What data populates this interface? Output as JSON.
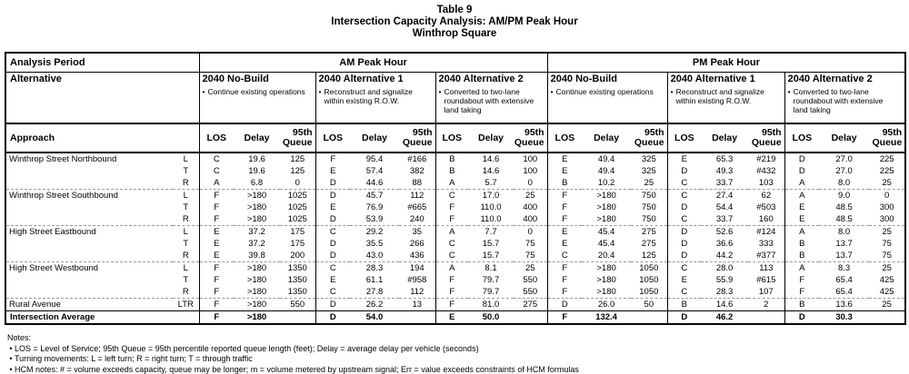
{
  "bullet": "•",
  "title": {
    "line1": "Table 9",
    "line2": "Intersection Capacity Analysis: AM/PM Peak Hour",
    "line3": "Winthrop Square"
  },
  "table": {
    "analysis_period_label": "Analysis Period",
    "alternative_label": "Alternative",
    "approach_label": "Approach",
    "metric_headers": [
      "LOS",
      "Delay",
      "95th Queue"
    ],
    "periods": [
      {
        "name": "AM Peak Hour",
        "alternatives": [
          {
            "name": "2040 No-Build",
            "description": "Continue existing operations"
          },
          {
            "name": "2040 Alternative 1",
            "description": "Reconstruct and signalize within existing R.O.W."
          },
          {
            "name": "2040 Alternative 2",
            "description": "Converted to two-lane roundabout with extensive land taking"
          }
        ]
      },
      {
        "name": "PM Peak Hour",
        "alternatives": [
          {
            "name": "2040 No-Build",
            "description": "Continue existing operations"
          },
          {
            "name": "2040 Alternative 1",
            "description": "Reconstruct and signalize within existing R.O.W."
          },
          {
            "name": "2040 Alternative 2",
            "description": "Converted to two-lane roundabout with extensive land taking"
          }
        ]
      }
    ],
    "rows": [
      {
        "approach": "Winthrop Street Northbound",
        "movement": "L",
        "group_start": false,
        "cells": [
          [
            "C",
            "19.6",
            "125"
          ],
          [
            "F",
            "95.4",
            "#166"
          ],
          [
            "B",
            "14.6",
            "100"
          ],
          [
            "E",
            "49.4",
            "325"
          ],
          [
            "E",
            "65.3",
            "#219"
          ],
          [
            "D",
            "27.0",
            "225"
          ]
        ]
      },
      {
        "approach": "",
        "movement": "T",
        "group_start": false,
        "cells": [
          [
            "C",
            "19.6",
            "125"
          ],
          [
            "E",
            "57.4",
            "382"
          ],
          [
            "B",
            "14.6",
            "100"
          ],
          [
            "E",
            "49.4",
            "325"
          ],
          [
            "D",
            "49.3",
            "#432"
          ],
          [
            "D",
            "27.0",
            "225"
          ]
        ]
      },
      {
        "approach": "",
        "movement": "R",
        "group_start": false,
        "cells": [
          [
            "A",
            "6.8",
            "0"
          ],
          [
            "D",
            "44.6",
            "88"
          ],
          [
            "A",
            "5.7",
            "0"
          ],
          [
            "B",
            "10.2",
            "25"
          ],
          [
            "C",
            "33.7",
            "103"
          ],
          [
            "A",
            "8.0",
            "25"
          ]
        ]
      },
      {
        "approach": "Winthrop Street Southbound",
        "movement": "L",
        "group_start": true,
        "cells": [
          [
            "F",
            ">180",
            "1025"
          ],
          [
            "D",
            "45.7",
            "112"
          ],
          [
            "C",
            "17.0",
            "25"
          ],
          [
            "F",
            ">180",
            "750"
          ],
          [
            "C",
            "27.4",
            "62"
          ],
          [
            "A",
            "9.0",
            "0"
          ]
        ]
      },
      {
        "approach": "",
        "movement": "T",
        "group_start": false,
        "cells": [
          [
            "F",
            ">180",
            "1025"
          ],
          [
            "E",
            "76.9",
            "#665"
          ],
          [
            "F",
            "110.0",
            "400"
          ],
          [
            "F",
            ">180",
            "750"
          ],
          [
            "D",
            "54.4",
            "#503"
          ],
          [
            "E",
            "48.5",
            "300"
          ]
        ]
      },
      {
        "approach": "",
        "movement": "R",
        "group_start": false,
        "cells": [
          [
            "F",
            ">180",
            "1025"
          ],
          [
            "D",
            "53.9",
            "240"
          ],
          [
            "F",
            "110.0",
            "400"
          ],
          [
            "F",
            ">180",
            "750"
          ],
          [
            "C",
            "33.7",
            "160"
          ],
          [
            "E",
            "48.5",
            "300"
          ]
        ]
      },
      {
        "approach": "High Street Eastbound",
        "movement": "L",
        "group_start": true,
        "cells": [
          [
            "E",
            "37.2",
            "175"
          ],
          [
            "C",
            "29.2",
            "35"
          ],
          [
            "A",
            "7.7",
            "0"
          ],
          [
            "E",
            "45.4",
            "275"
          ],
          [
            "D",
            "52.6",
            "#124"
          ],
          [
            "A",
            "8.0",
            "25"
          ]
        ]
      },
      {
        "approach": "",
        "movement": "T",
        "group_start": false,
        "cells": [
          [
            "E",
            "37.2",
            "175"
          ],
          [
            "D",
            "35.5",
            "266"
          ],
          [
            "C",
            "15.7",
            "75"
          ],
          [
            "E",
            "45.4",
            "275"
          ],
          [
            "D",
            "36.6",
            "333"
          ],
          [
            "B",
            "13.7",
            "75"
          ]
        ]
      },
      {
        "approach": "",
        "movement": "R",
        "group_start": false,
        "cells": [
          [
            "E",
            "39.8",
            "200"
          ],
          [
            "D",
            "43.0",
            "436"
          ],
          [
            "C",
            "15.7",
            "75"
          ],
          [
            "C",
            "20.4",
            "125"
          ],
          [
            "D",
            "44.2",
            "#377"
          ],
          [
            "B",
            "13.7",
            "75"
          ]
        ]
      },
      {
        "approach": "High Street Westbound",
        "movement": "L",
        "group_start": true,
        "cells": [
          [
            "F",
            ">180",
            "1350"
          ],
          [
            "C",
            "28.3",
            "194"
          ],
          [
            "A",
            "8.1",
            "25"
          ],
          [
            "F",
            ">180",
            "1050"
          ],
          [
            "C",
            "28.0",
            "113"
          ],
          [
            "A",
            "8.3",
            "25"
          ]
        ]
      },
      {
        "approach": "",
        "movement": "T",
        "group_start": false,
        "cells": [
          [
            "F",
            ">180",
            "1350"
          ],
          [
            "E",
            "61.1",
            "#958"
          ],
          [
            "F",
            "79.7",
            "550"
          ],
          [
            "F",
            ">180",
            "1050"
          ],
          [
            "E",
            "55.9",
            "#615"
          ],
          [
            "F",
            "65.4",
            "425"
          ]
        ]
      },
      {
        "approach": "",
        "movement": "R",
        "group_start": false,
        "cells": [
          [
            "F",
            ">180",
            "1350"
          ],
          [
            "C",
            "27.8",
            "112"
          ],
          [
            "F",
            "79.7",
            "550"
          ],
          [
            "F",
            ">180",
            "1050"
          ],
          [
            "C",
            "28.3",
            "107"
          ],
          [
            "F",
            "65.4",
            "425"
          ]
        ]
      },
      {
        "approach": "Rural Avenue",
        "movement": "LTR",
        "group_start": true,
        "cells": [
          [
            "F",
            ">180",
            "550"
          ],
          [
            "D",
            "26.2",
            "13"
          ],
          [
            "F",
            "81.0",
            "275"
          ],
          [
            "D",
            "26.0",
            "50"
          ],
          [
            "B",
            "14.6",
            "2"
          ],
          [
            "B",
            "13.6",
            "25"
          ]
        ]
      },
      {
        "approach": "Intersection Average",
        "movement": "",
        "group_start": false,
        "average": true,
        "cells": [
          [
            "F",
            ">180",
            ""
          ],
          [
            "D",
            "54.0",
            ""
          ],
          [
            "E",
            "50.0",
            ""
          ],
          [
            "F",
            "132.4",
            ""
          ],
          [
            "D",
            "46.2",
            ""
          ],
          [
            "D",
            "30.3",
            ""
          ]
        ]
      }
    ]
  },
  "notes": {
    "title": "Notes:",
    "items": [
      "LOS = Level of Service; 95th Queue = 95th percentile reported queue length (feet); Delay  = average delay per vehicle (seconds)",
      "Turning movements: L = left turn; R = right turn; T = through traffic",
      "HCM notes: # = volume exceeds capacity, queue may be longer; m = volume metered by upstream signal; Err = value exceeds constraints of HCM formulas"
    ]
  }
}
